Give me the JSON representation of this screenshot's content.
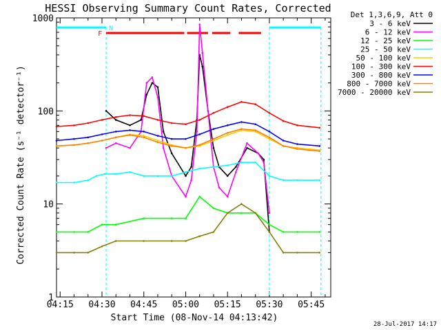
{
  "chart_data": {
    "type": "line",
    "title": "HESSI Observing Summary Count Rates, Corrected",
    "xlabel": "Start Time (08-Nov-14 04:13:42)",
    "ylabel": "Corrected Count Rate (s⁻¹ detector⁻¹)",
    "yscale": "log",
    "xlim": [
      "04:13:42",
      "05:52:00"
    ],
    "ylim": [
      1,
      1000
    ],
    "x_ticks": [
      "04:15",
      "04:30",
      "04:45",
      "05:00",
      "05:15",
      "05:30",
      "05:45"
    ],
    "y_ticks": [
      "1",
      "10",
      "100",
      "1000"
    ],
    "legend_title": "Det 1,3,6,9, Att 0",
    "legend_position": "right-outside",
    "footer_date": "28-Jul-2017 14:17",
    "flags": {
      "night": {
        "label": "N",
        "color": "#00ffff",
        "intervals": [
          [
            "04:13:42",
            "04:31:30"
          ],
          [
            "05:30:00",
            "05:48:30"
          ]
        ]
      },
      "flare": {
        "label": "F",
        "color": "#ff0000",
        "intervals": [
          [
            "04:31:30",
            "04:59:30"
          ],
          [
            "05:00:30",
            "05:08:00"
          ],
          [
            "05:09:30",
            "05:16:00"
          ],
          [
            "05:19:00",
            "05:27:00"
          ]
        ]
      }
    },
    "night_boundaries": [
      "04:31:30",
      "05:30:00",
      "05:48:30"
    ],
    "series": [
      {
        "name": "3 - 6 keV",
        "color": "#000000",
        "x": [
          "04:31:30",
          "04:35",
          "04:40",
          "04:44",
          "04:46",
          "04:48",
          "04:50",
          "04:52",
          "04:55",
          "05:00",
          "05:02",
          "05:04",
          "05:05",
          "05:06",
          "05:08",
          "05:10",
          "05:12",
          "05:15",
          "05:18",
          "05:22",
          "05:26",
          "05:28",
          "05:30"
        ],
        "values": [
          100,
          80,
          70,
          80,
          150,
          200,
          180,
          60,
          35,
          20,
          25,
          80,
          400,
          300,
          100,
          40,
          25,
          20,
          25,
          40,
          35,
          30,
          5
        ]
      },
      {
        "name": "6 - 12 keV",
        "color": "#ff00ff",
        "x": [
          "04:31:30",
          "04:35",
          "04:40",
          "04:44",
          "04:46",
          "04:48",
          "04:50",
          "04:52",
          "04:55",
          "05:00",
          "05:02",
          "05:04",
          "05:05",
          "05:06",
          "05:08",
          "05:10",
          "05:12",
          "05:15",
          "05:18",
          "05:22",
          "05:26",
          "05:28",
          "05:30"
        ],
        "values": [
          40,
          45,
          40,
          60,
          200,
          230,
          140,
          40,
          20,
          12,
          18,
          60,
          850,
          420,
          100,
          25,
          15,
          12,
          22,
          45,
          35,
          28,
          8
        ]
      },
      {
        "name": "12 - 25 keV",
        "color": "#00ff00",
        "x": [
          "04:13:42",
          "04:20",
          "04:25",
          "04:30",
          "04:35",
          "04:45",
          "04:55",
          "05:00",
          "05:05",
          "05:10",
          "05:15",
          "05:20",
          "05:25",
          "05:30",
          "05:35",
          "05:40",
          "05:48"
        ],
        "values": [
          5,
          5,
          5,
          6,
          6,
          7,
          7,
          7,
          12,
          9,
          8,
          8,
          8,
          6,
          5,
          5,
          5
        ]
      },
      {
        "name": "25 - 50 keV",
        "color": "#00ffff",
        "x": [
          "04:13:42",
          "04:20",
          "04:25",
          "04:28",
          "04:31",
          "04:35",
          "04:40",
          "04:45",
          "04:50",
          "04:55",
          "05:00",
          "05:05",
          "05:10",
          "05:15",
          "05:20",
          "05:25",
          "05:30",
          "05:35",
          "05:40",
          "05:48"
        ],
        "values": [
          17,
          17,
          18,
          20,
          21,
          21,
          22,
          20,
          20,
          20,
          22,
          24,
          25,
          26,
          28,
          28,
          20,
          18,
          18,
          18
        ]
      },
      {
        "name": "50 - 100 keV",
        "color": "#ffc800",
        "x": [
          "04:13:42",
          "04:20",
          "04:25",
          "04:30",
          "04:35",
          "04:40",
          "04:45",
          "04:50",
          "04:55",
          "05:00",
          "05:05",
          "05:10",
          "05:15",
          "05:20",
          "05:25",
          "05:30",
          "05:35",
          "05:40",
          "05:48"
        ],
        "values": [
          42,
          43,
          45,
          48,
          52,
          56,
          54,
          48,
          43,
          40,
          42,
          48,
          55,
          62,
          60,
          50,
          42,
          40,
          38
        ]
      },
      {
        "name": "100 - 300 keV",
        "color": "#ff0000",
        "x": [
          "04:13:42",
          "04:20",
          "04:25",
          "04:30",
          "04:35",
          "04:40",
          "04:45",
          "04:50",
          "04:55",
          "05:00",
          "05:05",
          "05:10",
          "05:15",
          "05:20",
          "05:25",
          "05:30",
          "05:35",
          "05:40",
          "05:48"
        ],
        "values": [
          68,
          70,
          74,
          80,
          86,
          90,
          88,
          80,
          74,
          72,
          80,
          95,
          110,
          125,
          118,
          95,
          78,
          70,
          66
        ]
      },
      {
        "name": "300 - 800 keV",
        "color": "#0000ff",
        "x": [
          "04:13:42",
          "04:20",
          "04:25",
          "04:30",
          "04:35",
          "04:40",
          "04:45",
          "04:50",
          "04:55",
          "05:00",
          "05:05",
          "05:10",
          "05:15",
          "05:20",
          "05:25",
          "05:30",
          "05:35",
          "05:40",
          "05:48"
        ],
        "values": [
          48,
          50,
          52,
          56,
          60,
          62,
          60,
          54,
          50,
          50,
          56,
          64,
          70,
          76,
          72,
          60,
          48,
          44,
          42
        ]
      },
      {
        "name": "800 - 7000 keV",
        "color": "#ff8000",
        "x": [
          "04:13:42",
          "04:20",
          "04:25",
          "04:30",
          "04:35",
          "04:40",
          "04:45",
          "04:50",
          "04:55",
          "05:00",
          "05:05",
          "05:10",
          "05:15",
          "05:20",
          "05:25",
          "05:30",
          "05:35",
          "05:40",
          "05:48"
        ],
        "values": [
          42,
          43,
          45,
          48,
          52,
          55,
          52,
          46,
          42,
          40,
          43,
          50,
          58,
          64,
          62,
          52,
          42,
          39,
          37
        ]
      },
      {
        "name": "7000 - 20000 keV",
        "color": "#808000",
        "x": [
          "04:13:42",
          "04:20",
          "04:25",
          "04:30",
          "04:35",
          "04:45",
          "04:55",
          "05:00",
          "05:05",
          "05:10",
          "05:15",
          "05:20",
          "05:25",
          "05:30",
          "05:35",
          "05:40",
          "05:48"
        ],
        "values": [
          3,
          3,
          3,
          3.5,
          4,
          4,
          4,
          4,
          4.5,
          5,
          8,
          10,
          8,
          5,
          3,
          3,
          3
        ]
      }
    ]
  }
}
